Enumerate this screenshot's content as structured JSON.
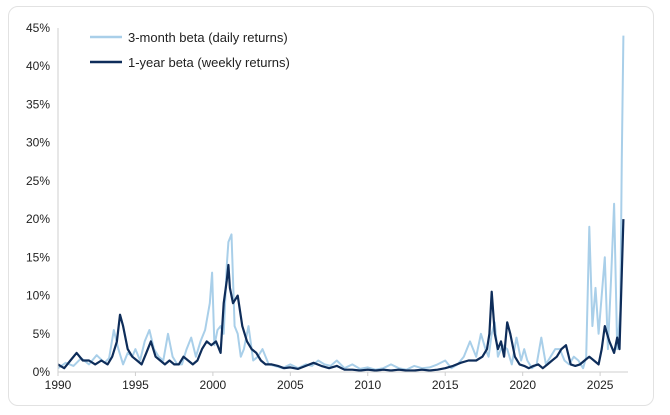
{
  "chart_data": {
    "type": "line",
    "title": "",
    "xlabel": "",
    "ylabel": "",
    "xlim": [
      1990,
      2026.8
    ],
    "ylim": [
      0,
      45
    ],
    "x_ticks": [
      "1990",
      "1995",
      "2000",
      "2005",
      "2010",
      "2015",
      "2020",
      "2025"
    ],
    "y_ticks": [
      "0%",
      "5%",
      "10%",
      "15%",
      "20%",
      "25%",
      "30%",
      "35%",
      "40%",
      "45%"
    ],
    "grid": false,
    "legend_position": "top-left",
    "series": [
      {
        "name": "3-month beta (daily returns)",
        "color": "#a9cfe9",
        "x": [
          1990.0,
          1990.5,
          1991.0,
          1991.5,
          1992.0,
          1992.5,
          1993.0,
          1993.3,
          1993.6,
          1993.9,
          1994.2,
          1994.5,
          1994.8,
          1995.0,
          1995.3,
          1995.6,
          1995.9,
          1996.2,
          1996.5,
          1996.8,
          1997.1,
          1997.4,
          1997.7,
          1998.0,
          1998.3,
          1998.6,
          1998.9,
          1999.2,
          1999.5,
          1999.8,
          1999.95,
          2000.1,
          2000.3,
          2000.5,
          2000.7,
          2000.9,
          2001.0,
          2001.2,
          2001.4,
          2001.6,
          2001.8,
          2002.0,
          2002.3,
          2002.6,
          2002.9,
          2003.2,
          2003.6,
          2004.0,
          2004.5,
          2005.0,
          2005.5,
          2006.0,
          2006.4,
          2006.8,
          2007.2,
          2007.6,
          2008.0,
          2008.5,
          2009.0,
          2009.5,
          2010.0,
          2010.5,
          2011.0,
          2011.5,
          2012.0,
          2012.5,
          2013.0,
          2013.5,
          2014.0,
          2014.5,
          2015.0,
          2015.4,
          2015.8,
          2016.2,
          2016.6,
          2017.0,
          2017.3,
          2017.6,
          2017.8,
          2018.0,
          2018.2,
          2018.4,
          2018.7,
          2019.0,
          2019.3,
          2019.6,
          2019.9,
          2020.1,
          2020.3,
          2020.6,
          2020.9,
          2021.2,
          2021.5,
          2021.8,
          2022.1,
          2022.4,
          2022.7,
          2023.0,
          2023.3,
          2023.6,
          2023.9,
          2024.1,
          2024.3,
          2024.5,
          2024.7,
          2024.9,
          2025.1,
          2025.3,
          2025.5,
          2025.7,
          2025.9,
          2026.1,
          2026.3,
          2026.4,
          2026.5
        ],
        "values": [
          0.5,
          1.2,
          0.8,
          1.8,
          1.0,
          2.2,
          1.2,
          1.8,
          5.5,
          3.0,
          1.0,
          2.5,
          2.0,
          3.0,
          1.5,
          4.0,
          5.5,
          3.0,
          2.0,
          1.5,
          5.0,
          2.0,
          1.0,
          1.0,
          3.0,
          4.5,
          2.0,
          4.0,
          5.5,
          9.0,
          13.0,
          3.5,
          5.5,
          6.0,
          5.0,
          14.0,
          17.0,
          18.0,
          6.0,
          5.0,
          2.0,
          3.0,
          6.0,
          1.5,
          2.0,
          3.0,
          1.0,
          0.8,
          0.5,
          1.0,
          0.5,
          1.0,
          0.8,
          1.5,
          1.0,
          0.8,
          1.5,
          0.5,
          1.0,
          0.4,
          0.6,
          0.3,
          0.5,
          1.0,
          0.5,
          0.3,
          0.8,
          0.5,
          0.6,
          1.0,
          1.5,
          0.5,
          1.0,
          2.0,
          4.0,
          2.0,
          5.0,
          3.0,
          2.0,
          5.0,
          6.5,
          2.0,
          3.5,
          3.0,
          1.0,
          4.5,
          1.5,
          3.0,
          1.5,
          0.5,
          1.0,
          4.5,
          1.0,
          2.0,
          3.0,
          3.0,
          1.5,
          1.0,
          2.0,
          1.5,
          0.5,
          2.0,
          19.0,
          6.0,
          11.0,
          5.0,
          10.0,
          15.0,
          3.0,
          12.0,
          22.0,
          3.0,
          8.0,
          28.0,
          44.0
        ],
        "end_label": ""
      },
      {
        "name": "1-year beta (weekly returns)",
        "color": "#0e2d5a",
        "x": [
          1990.0,
          1990.4,
          1990.8,
          1991.2,
          1991.6,
          1992.0,
          1992.4,
          1992.8,
          1993.2,
          1993.5,
          1993.8,
          1994.0,
          1994.2,
          1994.5,
          1994.8,
          1995.1,
          1995.4,
          1995.7,
          1996.0,
          1996.3,
          1996.6,
          1996.9,
          1997.2,
          1997.5,
          1997.8,
          1998.1,
          1998.4,
          1998.7,
          1999.0,
          1999.3,
          1999.6,
          1999.9,
          2000.2,
          2000.5,
          2000.7,
          2000.9,
          2001.0,
          2001.1,
          2001.3,
          2001.6,
          2001.9,
          2002.2,
          2002.5,
          2002.8,
          2003.1,
          2003.4,
          2003.8,
          2004.2,
          2004.6,
          2005.0,
          2005.5,
          2006.0,
          2006.5,
          2007.0,
          2007.5,
          2008.0,
          2008.5,
          2009.0,
          2009.5,
          2010.0,
          2010.5,
          2011.0,
          2011.5,
          2012.0,
          2012.5,
          2013.0,
          2013.5,
          2014.0,
          2014.5,
          2015.0,
          2015.5,
          2016.0,
          2016.5,
          2017.0,
          2017.4,
          2017.7,
          2017.85,
          2018.0,
          2018.2,
          2018.4,
          2018.6,
          2018.8,
          2019.0,
          2019.2,
          2019.5,
          2019.8,
          2020.1,
          2020.4,
          2020.7,
          2021.0,
          2021.3,
          2021.6,
          2021.9,
          2022.2,
          2022.5,
          2022.8,
          2023.1,
          2023.4,
          2023.7,
          2024.0,
          2024.3,
          2024.6,
          2024.9,
          2025.1,
          2025.3,
          2025.6,
          2025.9,
          2026.1,
          2026.25,
          2026.4,
          2026.5
        ],
        "values": [
          1.0,
          0.5,
          1.5,
          2.5,
          1.5,
          1.5,
          1.0,
          1.5,
          1.0,
          2.0,
          4.0,
          7.5,
          6.0,
          3.0,
          2.0,
          1.5,
          1.0,
          2.5,
          4.0,
          2.0,
          1.5,
          1.0,
          1.5,
          1.0,
          1.0,
          2.0,
          1.5,
          1.0,
          1.5,
          3.0,
          4.0,
          3.5,
          4.0,
          2.5,
          9.0,
          12.0,
          14.0,
          11.0,
          9.0,
          10.0,
          6.0,
          4.0,
          3.0,
          2.5,
          1.5,
          1.0,
          1.0,
          0.8,
          0.5,
          0.6,
          0.4,
          0.8,
          1.2,
          0.8,
          0.5,
          0.8,
          0.3,
          0.3,
          0.2,
          0.3,
          0.2,
          0.3,
          0.2,
          0.3,
          0.2,
          0.2,
          0.3,
          0.2,
          0.3,
          0.5,
          0.8,
          1.2,
          1.5,
          1.5,
          2.0,
          3.0,
          5.0,
          10.5,
          5.0,
          3.0,
          4.0,
          2.0,
          6.5,
          5.0,
          2.0,
          1.0,
          0.8,
          0.5,
          0.8,
          1.0,
          0.5,
          1.0,
          1.5,
          2.0,
          3.0,
          3.5,
          1.0,
          0.8,
          1.0,
          1.5,
          2.0,
          1.5,
          1.0,
          3.0,
          6.0,
          4.0,
          2.5,
          4.5,
          3.0,
          13.0,
          20.0
        ],
        "end_label": ""
      }
    ]
  }
}
